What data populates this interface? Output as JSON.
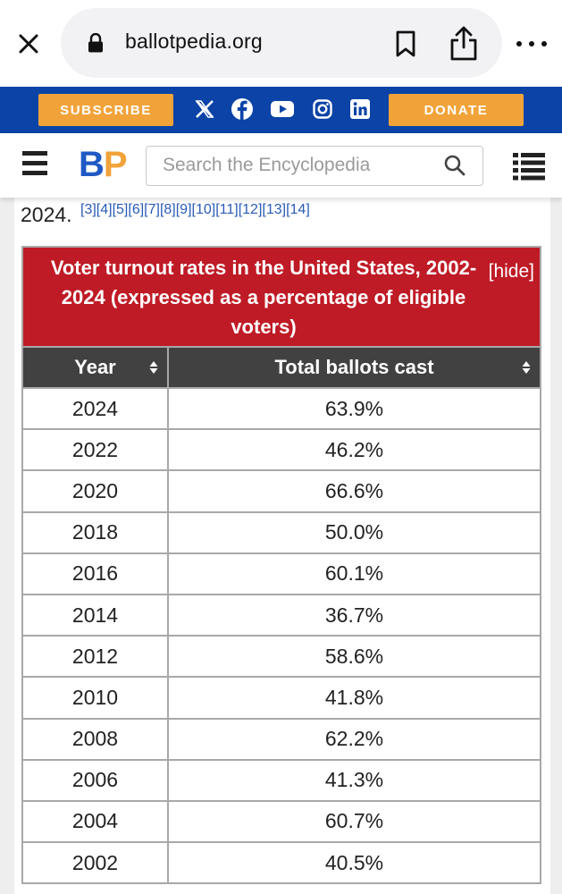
{
  "browser": {
    "url": "ballotpedia.org"
  },
  "banner": {
    "subscribe_label": "SUBSCRIBE",
    "donate_label": "DONATE",
    "bg_color": "#0b43a6",
    "button_color": "#f1a33a",
    "social_icons": [
      "x-icon",
      "facebook-icon",
      "youtube-icon",
      "instagram-icon",
      "linkedin-icon"
    ]
  },
  "header": {
    "logo_b": "B",
    "logo_p": "P",
    "search_placeholder": "Search the Encyclopedia"
  },
  "article": {
    "preceding_text": "2024.",
    "references": "[3][4][5][6][7][8][9][10][11][12][13][14]"
  },
  "table": {
    "caption": "Voter turnout rates in the United States, 2002-2024 (expressed as a percentage of eligible voters)",
    "hide_label": "[hide]",
    "header_color": "#bf1b26",
    "columns": [
      "Year",
      "Total ballots cast"
    ],
    "rows": [
      {
        "year": "2024",
        "turnout": "63.9%"
      },
      {
        "year": "2022",
        "turnout": "46.2%"
      },
      {
        "year": "2020",
        "turnout": "66.6%"
      },
      {
        "year": "2018",
        "turnout": "50.0%"
      },
      {
        "year": "2016",
        "turnout": "60.1%"
      },
      {
        "year": "2014",
        "turnout": "36.7%"
      },
      {
        "year": "2012",
        "turnout": "58.6%"
      },
      {
        "year": "2010",
        "turnout": "41.8%"
      },
      {
        "year": "2008",
        "turnout": "62.2%"
      },
      {
        "year": "2006",
        "turnout": "41.3%"
      },
      {
        "year": "2004",
        "turnout": "60.7%"
      },
      {
        "year": "2002",
        "turnout": "40.5%"
      }
    ]
  }
}
